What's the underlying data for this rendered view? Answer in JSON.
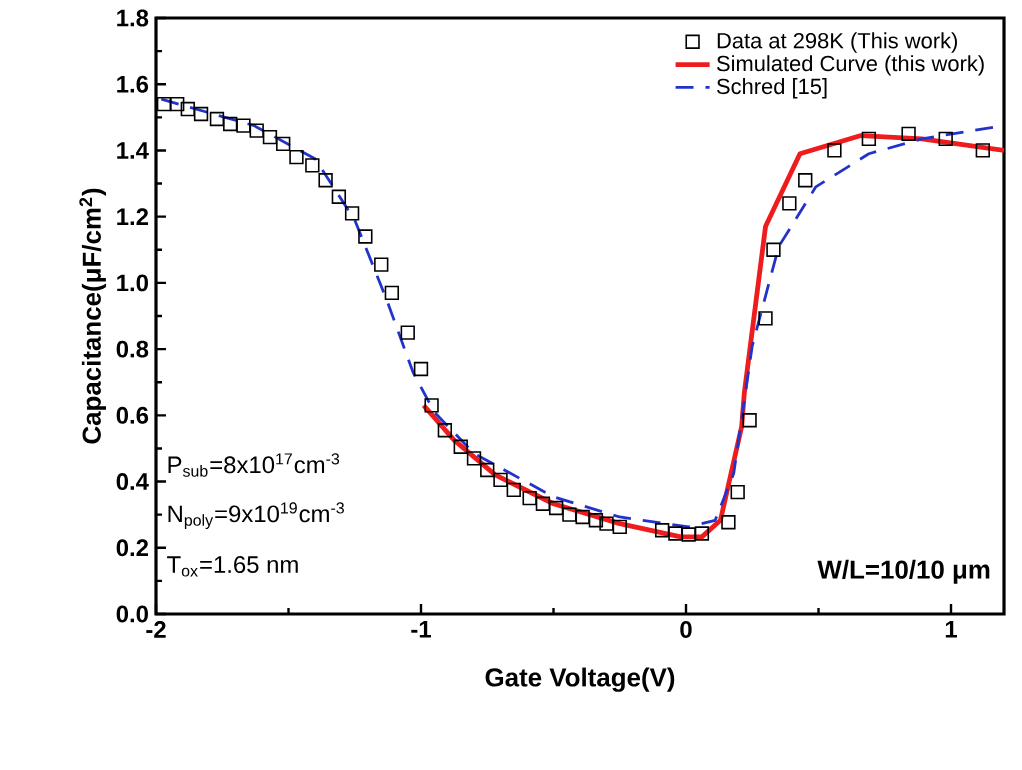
{
  "chart_data": {
    "type": "scatter",
    "xlabel": "Gate Voltage(V)",
    "ylabel": "Capacitance(μF/cm$^{2}$)",
    "xlim": [
      -2,
      1.2
    ],
    "xticks": [
      -2,
      -1,
      0,
      1
    ],
    "ylim": [
      0,
      1.8
    ],
    "yticks": [
      {
        "value": 0,
        "label": "0.0"
      },
      0.2,
      0.4,
      0.6,
      0.8,
      {
        "value": 1,
        "label": "1.0"
      },
      1.2,
      1.4,
      1.6,
      1.8
    ],
    "legend": "top right",
    "grid": false,
    "series": [
      {
        "name": "Data at 298K (This work)",
        "marker": "square",
        "color": "#000000",
        "x": [
          -1.97,
          -1.92,
          -1.88,
          -1.83,
          -1.77,
          -1.72,
          -1.67,
          -1.62,
          -1.57,
          -1.52,
          -1.47,
          -1.41,
          -1.36,
          -1.31,
          -1.26,
          -1.21,
          -1.15,
          -1.11,
          -1.05,
          -1.0,
          -0.96,
          -0.91,
          -0.85,
          -0.8,
          -0.75,
          -0.7,
          -0.65,
          -0.59,
          -0.54,
          -0.49,
          -0.44,
          -0.39,
          -0.34,
          -0.3,
          -0.25,
          -0.09,
          -0.04,
          0.01,
          0.06,
          0.16,
          0.195,
          0.24,
          0.3,
          0.33,
          0.39,
          0.45,
          0.56,
          0.69,
          0.84,
          0.98,
          1.12
        ],
        "values": [
          1.54,
          1.54,
          1.525,
          1.51,
          1.495,
          1.48,
          1.475,
          1.46,
          1.44,
          1.42,
          1.38,
          1.355,
          1.31,
          1.26,
          1.21,
          1.14,
          1.055,
          0.97,
          0.85,
          0.74,
          0.63,
          0.555,
          0.505,
          0.47,
          0.435,
          0.405,
          0.375,
          0.35,
          0.333,
          0.32,
          0.3,
          0.293,
          0.283,
          0.273,
          0.263,
          0.253,
          0.243,
          0.24,
          0.243,
          0.277,
          0.368,
          0.585,
          0.893,
          1.1,
          1.24,
          1.31,
          1.4,
          1.435,
          1.45,
          1.435,
          1.4
        ]
      },
      {
        "name": "Simulated Curve (this work)",
        "type": "line",
        "line_style": "solid",
        "color": "#ee1c1c",
        "x": [
          -0.99,
          -0.875,
          -0.72,
          -0.5,
          -0.25,
          -0.02,
          0.06,
          0.13,
          0.21,
          0.22,
          0.3,
          0.43,
          0.66,
          0.89,
          1.2
        ],
        "values": [
          0.63,
          0.525,
          0.42,
          0.333,
          0.273,
          0.233,
          0.233,
          0.283,
          0.566,
          0.667,
          1.17,
          1.39,
          1.445,
          1.435,
          1.4
        ]
      },
      {
        "name": "Schred [15]",
        "type": "line",
        "line_style": "dashed",
        "color": "#2233cc",
        "x": [
          -1.98,
          -1.63,
          -1.4,
          -1.25,
          -1.13,
          -1.03,
          -0.95,
          -0.8,
          -0.5,
          -0.25,
          0.01,
          0.11,
          0.18,
          0.25,
          0.35,
          0.49,
          0.69,
          0.89,
          1.2
        ],
        "values": [
          1.555,
          1.475,
          1.375,
          1.19,
          0.95,
          0.73,
          0.61,
          0.485,
          0.354,
          0.293,
          0.263,
          0.283,
          0.424,
          0.81,
          1.11,
          1.29,
          1.39,
          1.435,
          1.475
        ]
      }
    ],
    "annotations": [
      "P$_{sub}$=8x10$^{17}$cm$^{-3}$",
      "N$_{poly}$=9x10$^{19}$cm$^{-3}$",
      "T$_{ox}$=1.65 nm",
      "W/L=10/10 μm"
    ]
  }
}
